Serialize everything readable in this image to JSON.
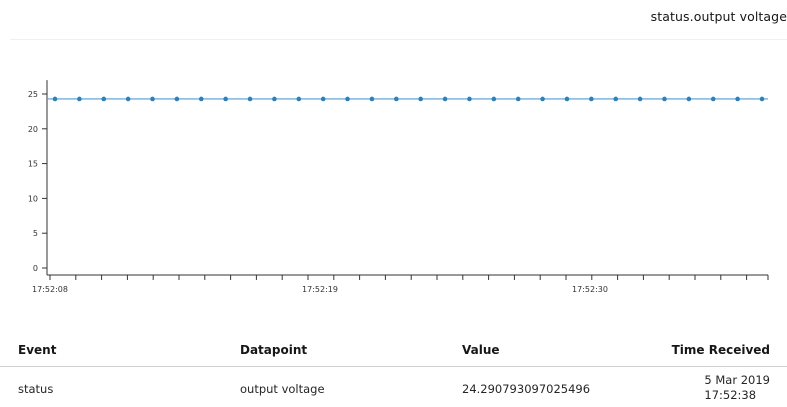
{
  "panel": {
    "title": "status.output voltage"
  },
  "chart_data": {
    "type": "line",
    "title": "",
    "xlabel": "",
    "ylabel": "",
    "ylim": [
      -1,
      27
    ],
    "y_ticks": [
      0,
      5,
      10,
      15,
      20,
      25
    ],
    "x_labels": [
      "17:52:08",
      "17:52:19",
      "17:52:30"
    ],
    "grid": false,
    "series": [
      {
        "values": [
          24.29,
          24.29,
          24.29,
          24.29,
          24.29,
          24.29,
          24.29,
          24.29,
          24.29,
          24.29,
          24.29,
          24.29,
          24.29,
          24.29,
          24.29,
          24.29,
          24.29,
          24.29,
          24.29,
          24.29,
          24.29,
          24.29,
          24.29,
          24.29,
          24.29,
          24.29,
          24.29,
          24.29,
          24.29,
          24.29
        ]
      }
    ],
    "colors": {
      "line": "#4f9ed8",
      "point": "#2f7fb8"
    }
  },
  "table": {
    "headers": {
      "event": "Event",
      "datapoint": "Datapoint",
      "value": "Value",
      "time": "Time Received"
    },
    "rows": [
      {
        "event": "status",
        "datapoint": "output voltage",
        "value": "24.290793097025496",
        "date": "5 Mar 2019",
        "time": "17:52:38"
      }
    ]
  }
}
